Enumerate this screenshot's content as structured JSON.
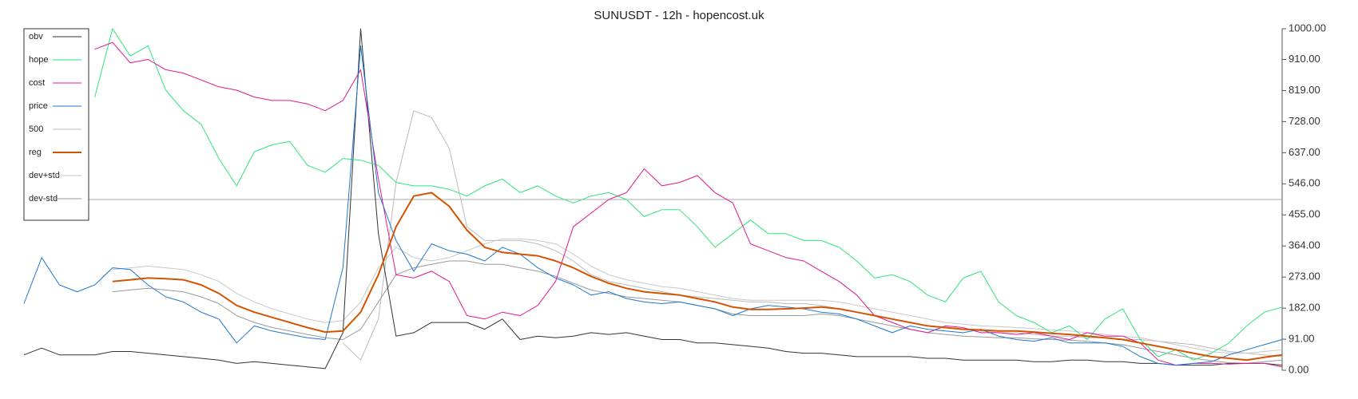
{
  "chart_data": {
    "type": "line",
    "title": "SUNUSDT - 12h - hopencost.uk",
    "categories": [
      null,
      null,
      null,
      null,
      null,
      null,
      null,
      null,
      null,
      null,
      null,
      null,
      null,
      null,
      null,
      null,
      null,
      null,
      null,
      null,
      null,
      null,
      null,
      null,
      null,
      null,
      null,
      null,
      null,
      null,
      null,
      null,
      null,
      null,
      null,
      null,
      null,
      null,
      null,
      null,
      null,
      null,
      null,
      null,
      null,
      null,
      null,
      null,
      null,
      null,
      null,
      null,
      null,
      null,
      null,
      null,
      null,
      null,
      null,
      null,
      null,
      null,
      null,
      null,
      null,
      null,
      null,
      null,
      null,
      null,
      null,
      null
    ],
    "ylim": [
      0,
      1000
    ],
    "yticks": [
      {
        "value": 0,
        "label": "0.00"
      },
      {
        "value": 91,
        "label": "91.00"
      },
      {
        "value": 182,
        "label": "182.00"
      },
      {
        "value": 273,
        "label": "273.00"
      },
      {
        "value": 364,
        "label": "364.00"
      },
      {
        "value": 455,
        "label": "455.00"
      },
      {
        "value": 546,
        "label": "546.00"
      },
      {
        "value": 637,
        "label": "637.00"
      },
      {
        "value": 728,
        "label": "728.00"
      },
      {
        "value": 819,
        "label": "819.00"
      },
      {
        "value": 910,
        "label": "910.00"
      },
      {
        "value": 1000,
        "label": "1000.00"
      }
    ],
    "reference_line": 500,
    "legend": "top-left",
    "series": [
      {
        "name": "obv",
        "color": "#333333",
        "width": 1,
        "values": [
          45,
          65,
          45,
          45,
          45,
          55,
          55,
          50,
          45,
          40,
          35,
          30,
          20,
          25,
          20,
          15,
          10,
          5,
          110,
          1000,
          400,
          100,
          110,
          140,
          140,
          140,
          120,
          150,
          90,
          100,
          95,
          100,
          110,
          105,
          110,
          100,
          90,
          90,
          80,
          80,
          75,
          70,
          65,
          55,
          50,
          50,
          45,
          40,
          40,
          40,
          40,
          35,
          35,
          30,
          30,
          30,
          30,
          25,
          25,
          30,
          30,
          25,
          25,
          20,
          20,
          15,
          15,
          15,
          20,
          20,
          20,
          15
        ]
      },
      {
        "name": "hope",
        "color": "#2ee57a",
        "width": 1,
        "values": [
          null,
          null,
          null,
          null,
          800,
          1000,
          920,
          950,
          820,
          760,
          720,
          620,
          540,
          640,
          660,
          670,
          600,
          580,
          620,
          615,
          600,
          550,
          540,
          540,
          530,
          510,
          540,
          560,
          520,
          540,
          510,
          490,
          510,
          520,
          500,
          450,
          470,
          470,
          420,
          360,
          400,
          440,
          400,
          400,
          380,
          380,
          360,
          320,
          270,
          280,
          260,
          220,
          200,
          270,
          290,
          200,
          160,
          140,
          110,
          130,
          90,
          150,
          180,
          90,
          40,
          60,
          30,
          50,
          80,
          130,
          170,
          185
        ]
      },
      {
        "name": "cost",
        "color": "#e0198c",
        "width": 1,
        "values": [
          null,
          null,
          null,
          null,
          940,
          960,
          900,
          910,
          880,
          870,
          850,
          830,
          820,
          800,
          790,
          790,
          780,
          760,
          790,
          880,
          560,
          280,
          270,
          290,
          260,
          160,
          150,
          170,
          160,
          190,
          260,
          420,
          460,
          500,
          520,
          590,
          540,
          550,
          570,
          520,
          490,
          370,
          350,
          330,
          320,
          290,
          260,
          220,
          160,
          140,
          120,
          110,
          130,
          125,
          110,
          110,
          105,
          110,
          100,
          90,
          110,
          100,
          100,
          80,
          30,
          15,
          20,
          20,
          18,
          20,
          20,
          10
        ]
      },
      {
        "name": "price",
        "color": "#1f77d0",
        "width": 1,
        "values": [
          195,
          330,
          250,
          230,
          250,
          300,
          295,
          250,
          215,
          200,
          170,
          150,
          80,
          130,
          115,
          105,
          95,
          90,
          300,
          950,
          520,
          380,
          290,
          370,
          350,
          340,
          320,
          360,
          340,
          300,
          270,
          250,
          220,
          230,
          210,
          200,
          195,
          200,
          190,
          180,
          160,
          180,
          190,
          185,
          180,
          170,
          165,
          150,
          130,
          110,
          130,
          120,
          115,
          110,
          120,
          100,
          90,
          85,
          95,
          80,
          80,
          80,
          70,
          40,
          20,
          15,
          20,
          25,
          45,
          60,
          75,
          90
        ]
      },
      {
        "name": "500",
        "color": "#bbbbbb",
        "width": 1,
        "values": [
          null,
          null,
          null,
          null,
          null,
          null,
          null,
          null,
          null,
          null,
          null,
          null,
          null,
          null,
          null,
          null,
          null,
          null,
          80,
          30,
          150,
          550,
          760,
          740,
          650,
          420,
          380,
          380,
          380,
          370,
          350,
          320,
          280,
          260,
          250,
          240,
          230,
          220,
          215,
          210,
          205,
          200,
          200,
          195,
          195,
          190,
          180,
          170,
          160,
          150,
          140,
          130,
          125,
          120,
          115,
          110,
          110,
          105,
          100,
          100,
          95,
          95,
          90,
          90,
          85,
          80,
          75,
          65,
          55,
          50,
          45,
          40
        ]
      },
      {
        "name": "reg",
        "color": "#d35400",
        "width": 2,
        "values": [
          null,
          null,
          null,
          null,
          null,
          260,
          265,
          270,
          268,
          265,
          250,
          225,
          190,
          170,
          155,
          140,
          125,
          112,
          115,
          170,
          280,
          420,
          510,
          520,
          480,
          410,
          360,
          345,
          340,
          335,
          320,
          300,
          275,
          255,
          240,
          230,
          225,
          220,
          210,
          200,
          185,
          178,
          178,
          180,
          182,
          185,
          180,
          170,
          160,
          150,
          140,
          130,
          125,
          120,
          118,
          115,
          115,
          112,
          108,
          105,
          100,
          95,
          90,
          80,
          70,
          60,
          50,
          40,
          35,
          30,
          38,
          45
        ]
      },
      {
        "name": "dev+std",
        "color": "#c8c8c8",
        "width": 1,
        "values": [
          null,
          null,
          null,
          null,
          null,
          295,
          300,
          305,
          300,
          295,
          280,
          260,
          225,
          200,
          180,
          165,
          150,
          140,
          145,
          200,
          300,
          360,
          330,
          320,
          330,
          350,
          370,
          385,
          385,
          380,
          370,
          340,
          305,
          280,
          265,
          255,
          245,
          240,
          230,
          220,
          210,
          205,
          205,
          205,
          205,
          205,
          200,
          190,
          180,
          170,
          160,
          150,
          140,
          135,
          130,
          128,
          125,
          122,
          118,
          115,
          110,
          105,
          100,
          95,
          85,
          75,
          65,
          55,
          50,
          50,
          55,
          60
        ]
      },
      {
        "name": "dev-std",
        "color": "#999999",
        "width": 1,
        "values": [
          null,
          null,
          null,
          null,
          null,
          230,
          235,
          240,
          235,
          230,
          215,
          195,
          160,
          140,
          125,
          115,
          105,
          95,
          90,
          120,
          200,
          280,
          300,
          310,
          320,
          320,
          310,
          310,
          300,
          290,
          275,
          255,
          235,
          225,
          215,
          210,
          205,
          200,
          190,
          180,
          165,
          160,
          160,
          160,
          160,
          165,
          160,
          150,
          140,
          130,
          120,
          110,
          105,
          100,
          98,
          95,
          95,
          92,
          90,
          88,
          85,
          80,
          75,
          65,
          55,
          45,
          35,
          28,
          22,
          20,
          25,
          30
        ]
      }
    ]
  }
}
